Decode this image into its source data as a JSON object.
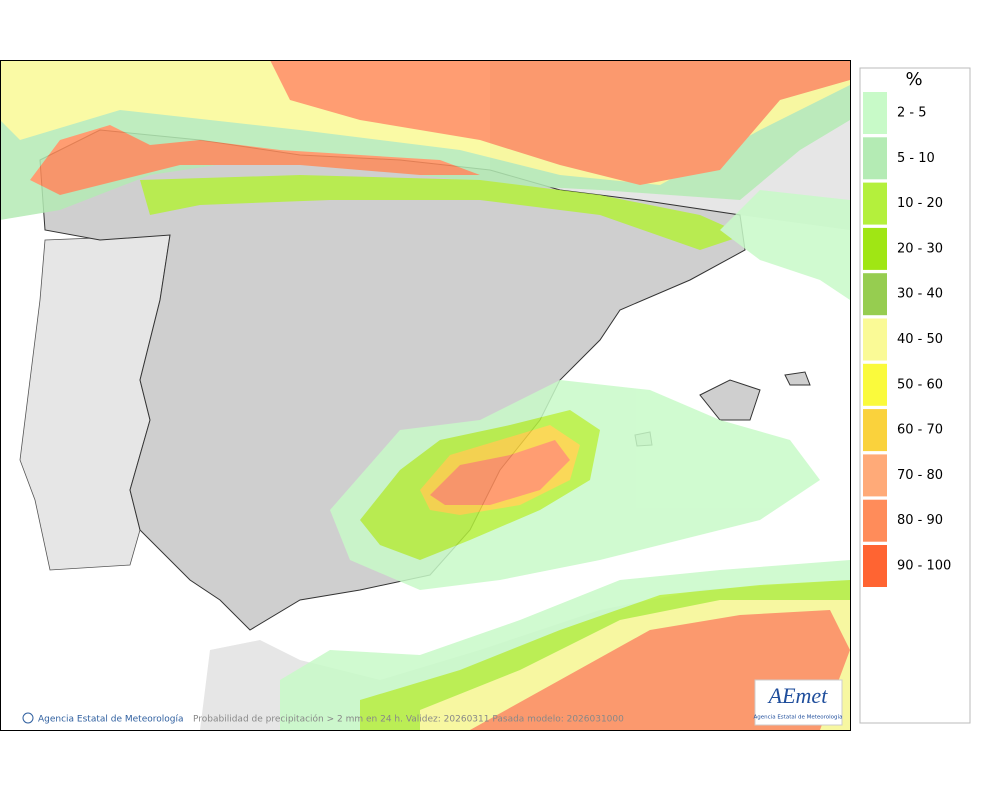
{
  "legend": {
    "title": "%",
    "items": [
      {
        "label": "2 - 5",
        "color": "#c8fac8"
      },
      {
        "label": "5 - 10",
        "color": "#b4ebb4"
      },
      {
        "label": "10 - 20",
        "color": "#b4f03c"
      },
      {
        "label": "20 - 30",
        "color": "#a0e614"
      },
      {
        "label": "30 - 40",
        "color": "#96cd50"
      },
      {
        "label": "40 - 50",
        "color": "#fafa96"
      },
      {
        "label": "50 - 60",
        "color": "#fafa3c"
      },
      {
        "label": "60 - 70",
        "color": "#fad23c"
      },
      {
        "label": "70 - 80",
        "color": "#ffaa78"
      },
      {
        "label": "80 - 90",
        "color": "#ff8c5a"
      },
      {
        "label": "90 - 100",
        "color": "#ff6432"
      }
    ]
  },
  "footer": {
    "agency": "Agencia Estatal de Meteorología",
    "caption": "Probabilidad de precipitación > 2 mm en 24 h. Validez: 20260311 Pasada modelo: 2026031000"
  },
  "logo": {
    "name": "AEmet",
    "subtitle": "Agencia Estatal de Meteorología"
  }
}
